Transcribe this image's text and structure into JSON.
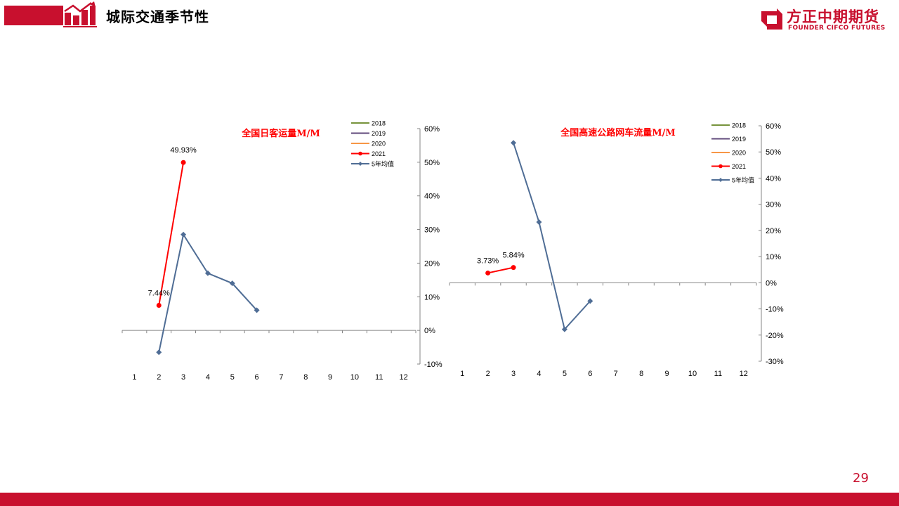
{
  "header": {
    "title": "城际交通季节性"
  },
  "logo": {
    "cn": "方正中期期货",
    "en": "FOUNDER CIFCO FUTURES"
  },
  "page_number": "29",
  "colors": {
    "brand": "#c8102e",
    "s2018": "#77933c",
    "s2019": "#604a7b",
    "s2020": "#f79646",
    "s2021": "#ff0000",
    "avg5": "#4f6d95",
    "axis": "#868686"
  },
  "chart_data": [
    {
      "type": "line",
      "title": "全国日客运量M/M",
      "categories": [
        "1",
        "2",
        "3",
        "4",
        "5",
        "6",
        "7",
        "8",
        "9",
        "10",
        "11",
        "12"
      ],
      "ylim": [
        -0.1,
        0.6
      ],
      "y_ticks": [
        "-10%",
        "0%",
        "10%",
        "20%",
        "30%",
        "40%",
        "50%",
        "60%"
      ],
      "y_axis_side": "right",
      "legend_position": "top-right",
      "series": [
        {
          "name": "2018",
          "values": [
            null,
            null,
            null,
            null,
            null,
            null,
            null,
            null,
            null,
            null,
            null,
            null
          ]
        },
        {
          "name": "2019",
          "values": [
            null,
            null,
            null,
            null,
            null,
            null,
            null,
            null,
            null,
            null,
            null,
            null
          ]
        },
        {
          "name": "2020",
          "values": [
            null,
            null,
            null,
            null,
            null,
            null,
            null,
            null,
            null,
            null,
            null,
            null
          ]
        },
        {
          "name": "2021",
          "values": [
            null,
            0.0744,
            0.4993,
            null,
            null,
            null,
            null,
            null,
            null,
            null,
            null,
            null
          ],
          "labels": [
            null,
            "7.44%",
            "49.93%",
            null,
            null,
            null,
            null,
            null,
            null,
            null,
            null,
            null
          ]
        },
        {
          "name": "5年均值",
          "values": [
            null,
            -0.065,
            0.285,
            0.17,
            0.14,
            0.06,
            null,
            null,
            null,
            null,
            null,
            null
          ]
        }
      ]
    },
    {
      "type": "line",
      "title": "全国高速公路网车流量M/M",
      "categories": [
        "1",
        "2",
        "3",
        "4",
        "5",
        "6",
        "7",
        "8",
        "9",
        "10",
        "11",
        "12"
      ],
      "ylim": [
        -0.3,
        0.6
      ],
      "y_ticks": [
        "-30%",
        "-20%",
        "-10%",
        "0%",
        "10%",
        "20%",
        "30%",
        "40%",
        "50%",
        "60%"
      ],
      "y_axis_side": "right",
      "legend_position": "top-right",
      "series": [
        {
          "name": "2018",
          "values": [
            null,
            null,
            null,
            null,
            null,
            null,
            null,
            null,
            null,
            null,
            null,
            null
          ]
        },
        {
          "name": "2019",
          "values": [
            null,
            null,
            null,
            null,
            null,
            null,
            null,
            null,
            null,
            null,
            null,
            null
          ]
        },
        {
          "name": "2020",
          "values": [
            null,
            null,
            null,
            null,
            null,
            null,
            null,
            null,
            null,
            null,
            null,
            null
          ]
        },
        {
          "name": "2021",
          "values": [
            null,
            0.0373,
            0.0584,
            null,
            null,
            null,
            null,
            null,
            null,
            null,
            null,
            null
          ],
          "labels": [
            null,
            "3.73%",
            "5.84%",
            null,
            null,
            null,
            null,
            null,
            null,
            null,
            null,
            null
          ]
        },
        {
          "name": "5年均值",
          "values": [
            null,
            null,
            0.535,
            0.232,
            -0.178,
            -0.07,
            null,
            null,
            null,
            null,
            null,
            null
          ]
        }
      ]
    }
  ]
}
